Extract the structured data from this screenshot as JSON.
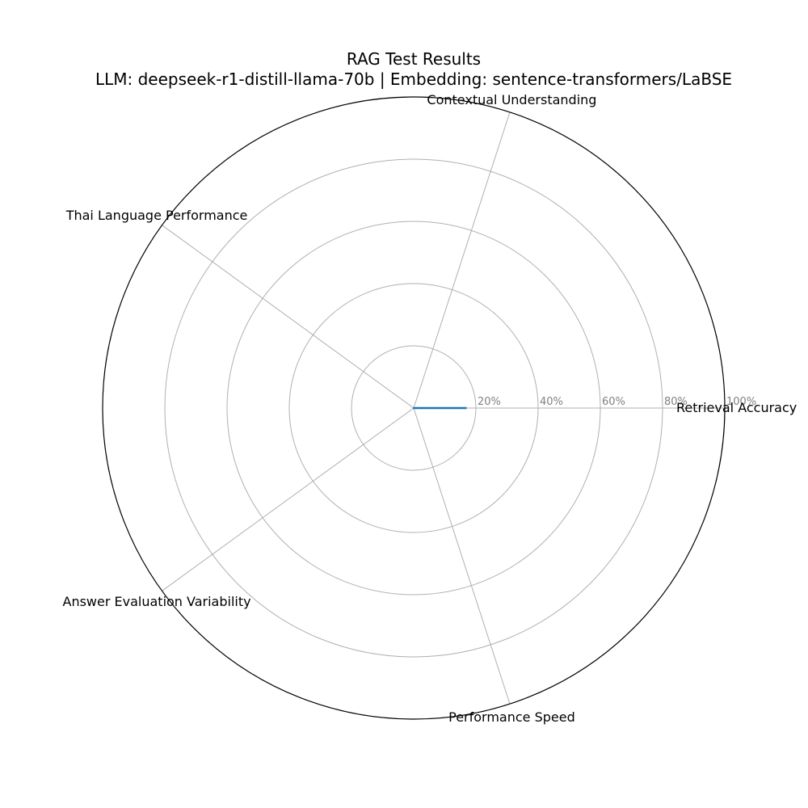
{
  "chart_data": {
    "type": "radar",
    "title": "RAG Test Results",
    "subtitle": "LLM: deepseek-r1-distill-llama-70b | Embedding: sentence-transformers/LaBSE",
    "categories": [
      "Retrieval Accuracy",
      "Contextual Understanding",
      "Thai Language Performance",
      "Answer Evaluation Variability",
      "Performance Speed"
    ],
    "series": [
      {
        "values": [
          17,
          0,
          0,
          0,
          0
        ],
        "color": "#1f77b4"
      }
    ],
    "rlim": [
      0,
      100
    ],
    "rticks": [
      20,
      40,
      60,
      80,
      100
    ],
    "rtick_labels": [
      "20%",
      "40%",
      "60%",
      "80%",
      "100%"
    ],
    "grid": true,
    "legend": "none"
  }
}
